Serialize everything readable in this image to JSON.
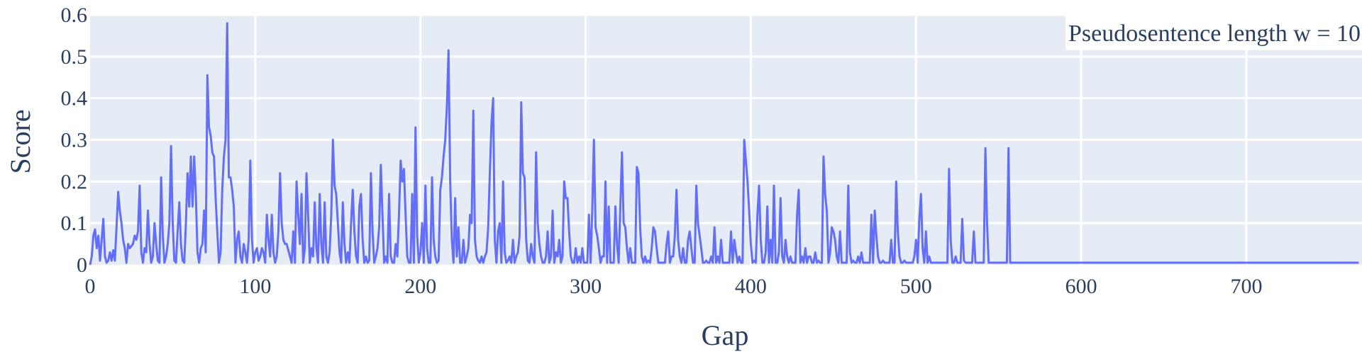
{
  "chart_data": {
    "type": "line",
    "xlabel": "Gap",
    "ylabel": "Score",
    "annotation": "Pseudosentence length w = 10",
    "xlim": [
      0,
      770
    ],
    "ylim": [
      0,
      0.6
    ],
    "x_ticks": [
      0,
      100,
      200,
      300,
      400,
      500,
      600,
      700
    ],
    "y_ticks": [
      0,
      0.1,
      0.2,
      0.3,
      0.4,
      0.5,
      0.6
    ],
    "x_tick_labels": [
      "0",
      "100",
      "200",
      "300",
      "400",
      "500",
      "600",
      "700"
    ],
    "y_tick_labels": [
      "0",
      "0.1",
      "0.2",
      "0.3",
      "0.4",
      "0.5",
      "0.6"
    ],
    "grid": true,
    "colors": {
      "line": "#636efa",
      "plot_bg": "#e5ecf6",
      "grid": "#ffffff",
      "text": "#2a3f5f"
    },
    "series": [
      {
        "values": [
          0,
          0.02,
          0.07,
          0.085,
          0.04,
          0.07,
          0.01,
          0.06,
          0.11,
          0.02,
          0.005,
          0.01,
          0.03,
          0.01,
          0.035,
          0.01,
          0.09,
          0.175,
          0.13,
          0.1,
          0.06,
          0.04,
          0.005,
          0.05,
          0.04,
          0.045,
          0.05,
          0.07,
          0.06,
          0.08,
          0.19,
          0.03,
          0.005,
          0.04,
          0.03,
          0.13,
          0.05,
          0.005,
          0.02,
          0.1,
          0.05,
          0.01,
          0.005,
          0.21,
          0.07,
          0.005,
          0.02,
          0.05,
          0.1,
          0.285,
          0.1,
          0.01,
          0.005,
          0.08,
          0.15,
          0.05,
          0.01,
          0.005,
          0.1,
          0.22,
          0.14,
          0.26,
          0.14,
          0.26,
          0.17,
          0.03,
          0.005,
          0.04,
          0.05,
          0.13,
          0.03,
          0.455,
          0.33,
          0.31,
          0.27,
          0.26,
          0.16,
          0.08,
          0.005,
          0.03,
          0.18,
          0.26,
          0.3,
          0.58,
          0.21,
          0.21,
          0.18,
          0.14,
          0.005,
          0.06,
          0.08,
          0.02,
          0.005,
          0.05,
          0.03,
          0.005,
          0.06,
          0.25,
          0.06,
          0.005,
          0.03,
          0.04,
          0.01,
          0.02,
          0.04,
          0.03,
          0.005,
          0.12,
          0.06,
          0.02,
          0.12,
          0.03,
          0.005,
          0.02,
          0.08,
          0.22,
          0.1,
          0.06,
          0.05,
          0.05,
          0.035,
          0.02,
          0.005,
          0.08,
          0.005,
          0.2,
          0.12,
          0.05,
          0.17,
          0.005,
          0.04,
          0.22,
          0.12,
          0.005,
          0.04,
          0.02,
          0.15,
          0.04,
          0.005,
          0.17,
          0.05,
          0.005,
          0.15,
          0.02,
          0.005,
          0.03,
          0.12,
          0.3,
          0.19,
          0.17,
          0.1,
          0.03,
          0.005,
          0.15,
          0.05,
          0.005,
          0.03,
          0.005,
          0.1,
          0.18,
          0.08,
          0.02,
          0.005,
          0.14,
          0.17,
          0.06,
          0.005,
          0.02,
          0.005,
          0.01,
          0.22,
          0.08,
          0.005,
          0.02,
          0.04,
          0.09,
          0.24,
          0.12,
          0.005,
          0.02,
          0.005,
          0.17,
          0.02,
          0.005,
          0.005,
          0.05,
          0.02,
          0.12,
          0.25,
          0.2,
          0.23,
          0.12,
          0.02,
          0.005,
          0.005,
          0.17,
          0.005,
          0.33,
          0.07,
          0.005,
          0.03,
          0.1,
          0.005,
          0.19,
          0.04,
          0.005,
          0.005,
          0.21,
          0.06,
          0.02,
          0.005,
          0.01,
          0.18,
          0.21,
          0.26,
          0.3,
          0.38,
          0.515,
          0.2,
          0.06,
          0.005,
          0.16,
          0.02,
          0.09,
          0.005,
          0.005,
          0.06,
          0.005,
          0.02,
          0.04,
          0.12,
          0.1,
          0.37,
          0.06,
          0.02,
          0.01,
          0.005,
          0.02,
          0.005,
          0.02,
          0.03,
          0.09,
          0.22,
          0.34,
          0.4,
          0.06,
          0.005,
          0.08,
          0.1,
          0.005,
          0.2,
          0.03,
          0.005,
          0.01,
          0.02,
          0.005,
          0.06,
          0.005,
          0.02,
          0.03,
          0.07,
          0.39,
          0.22,
          0.21,
          0.06,
          0.01,
          0.005,
          0.05,
          0.02,
          0.005,
          0.27,
          0.1,
          0.05,
          0.02,
          0.005,
          0.005,
          0.02,
          0.08,
          0.005,
          0.02,
          0.13,
          0.005,
          0.03,
          0.02,
          0.06,
          0.005,
          0.02,
          0.2,
          0.16,
          0.16,
          0.08,
          0.02,
          0.005,
          0.005,
          0.04,
          0.005,
          0.02,
          0.005,
          0.04,
          0.005,
          0.005,
          0.005,
          0.12,
          0.005,
          0.13,
          0.3,
          0.09,
          0.07,
          0.04,
          0.005,
          0.02,
          0.02,
          0.2,
          0.005,
          0.14,
          0.005,
          0.005,
          0.005,
          0.14,
          0.05,
          0.005,
          0.14,
          0.27,
          0.1,
          0.09,
          0.04,
          0.005,
          0.04,
          0.005,
          0.005,
          0.005,
          0.235,
          0.22,
          0.09,
          0.02,
          0.005,
          0.02,
          0.005,
          0.01,
          0.005,
          0.04,
          0.09,
          0.08,
          0.04,
          0.005,
          0.005,
          0.005,
          0.005,
          0.005,
          0.05,
          0.08,
          0.005,
          0.02,
          0.02,
          0.07,
          0.18,
          0.06,
          0.02,
          0.005,
          0.04,
          0.005,
          0.005,
          0.06,
          0.08,
          0.04,
          0.005,
          0.005,
          0.19,
          0.1,
          0.07,
          0.04,
          0.005,
          0.005,
          0.01,
          0.005,
          0.005,
          0.02,
          0.005,
          0.09,
          0.005,
          0.02,
          0.005,
          0.06,
          0.005,
          0.005,
          0.005,
          0.005,
          0.005,
          0.08,
          0.005,
          0.06,
          0.03,
          0.005,
          0.02,
          0.005,
          0.005,
          0.3,
          0.25,
          0.2,
          0.13,
          0.05,
          0.005,
          0.01,
          0.005,
          0.12,
          0.19,
          0.06,
          0.005,
          0.005,
          0.03,
          0.14,
          0.005,
          0.06,
          0.005,
          0.19,
          0.005,
          0.005,
          0.03,
          0.16,
          0.02,
          0.005,
          0.06,
          0.02,
          0.005,
          0.02,
          0.005,
          0.005,
          0.005,
          0.12,
          0.18,
          0.005,
          0.02,
          0.005,
          0.04,
          0.005,
          0.02,
          0.02,
          0.005,
          0.005,
          0.03,
          0.005,
          0.01,
          0.005,
          0.005,
          0.26,
          0.17,
          0.13,
          0.005,
          0.03,
          0.09,
          0.08,
          0.06,
          0.02,
          0.005,
          0.08,
          0.005,
          0.005,
          0.005,
          0.005,
          0.19,
          0.03,
          0.005,
          0.01,
          0.005,
          0.005,
          0.02,
          0.005,
          0.03,
          0.005,
          0.005,
          0.005,
          0.005,
          0.005,
          0.12,
          0.005,
          0.13,
          0.07,
          0.02,
          0.005,
          0.005,
          0.01,
          0.005,
          0.005,
          0.005,
          0.005,
          0.06,
          0.005,
          0.005,
          0.2,
          0.08,
          0.02,
          0.005,
          0.005,
          0.01,
          0.005,
          0.005,
          0.005,
          0.005,
          0.005,
          0.02,
          0.06,
          0.005,
          0.11,
          0.17,
          0.04,
          0.005,
          0.08,
          0.005,
          0.02,
          0.005,
          0.005,
          0.005,
          0.005,
          0.005,
          0.005,
          0.005,
          0.005,
          0.005,
          0.005,
          0.005,
          0.23,
          0.06,
          0.005,
          0.005,
          0.02,
          0.005,
          0.005,
          0.005,
          0.11,
          0.01,
          0.005,
          0.005,
          0.005,
          0.005,
          0.005,
          0.08,
          0.005,
          0.005,
          0.005,
          0.005,
          0.005,
          0.005,
          0.28,
          0.1,
          0.005,
          0.005,
          0.005,
          0.005,
          0.005,
          0.005,
          0.005,
          0.005,
          0.005,
          0.005,
          0.005,
          0.005,
          0.28,
          0.005,
          0.005,
          0.005,
          0.005,
          0.005,
          0.005,
          0.005,
          0.005,
          0.005,
          0.005,
          0.005,
          0.005,
          0.005,
          0.005,
          0.005,
          0.005,
          0.005,
          0.005,
          0.005,
          0.005,
          0.005,
          0.005,
          0.005,
          0.005,
          0.005,
          0.005,
          0.005,
          0.005,
          0.005,
          0.005,
          0.005,
          0.005,
          0.005,
          0.005,
          0.005,
          0.005,
          0.005,
          0.005,
          0.005,
          0.005,
          0.005,
          0.005,
          0.005,
          0.005,
          0.005,
          0.005,
          0.005,
          0.005,
          0.005,
          0.005,
          0.005,
          0.005,
          0.005,
          0.005,
          0.005,
          0.005,
          0.005,
          0.005,
          0.005,
          0.005,
          0.005,
          0.005,
          0.005,
          0.005,
          0.005,
          0.005,
          0.005,
          0.005,
          0.005,
          0.005,
          0.005,
          0.005,
          0.005,
          0.005,
          0.005,
          0.005,
          0.005,
          0.005,
          0.005,
          0.005,
          0.005,
          0.005,
          0.005,
          0.005,
          0.005,
          0.005,
          0.005,
          0.005,
          0.005,
          0.005,
          0.005,
          0.005,
          0.005,
          0.005,
          0.005,
          0.005,
          0.005,
          0.005,
          0.005,
          0.005,
          0.005,
          0.005,
          0.005,
          0.005,
          0.005,
          0.005,
          0.005,
          0.005,
          0.005,
          0.005,
          0.005,
          0.005,
          0.005,
          0.005,
          0.005,
          0.005,
          0.005,
          0.005,
          0.005,
          0.005,
          0.005,
          0.005,
          0.005,
          0.005,
          0.005,
          0.005,
          0.005,
          0.005,
          0.005,
          0.005,
          0.005,
          0.005,
          0.005,
          0.005,
          0.005,
          0.005,
          0.005,
          0.005,
          0.005,
          0.005,
          0.005,
          0.005,
          0.005,
          0.005,
          0.005,
          0.005,
          0.005,
          0.005,
          0.005,
          0.005,
          0.005,
          0.005,
          0.005,
          0.005,
          0.005,
          0.005,
          0.005,
          0.005,
          0.005,
          0.005,
          0.005,
          0.005,
          0.005,
          0.005,
          0.005,
          0.005,
          0.005,
          0.005,
          0.005,
          0.005,
          0.005,
          0.005,
          0.005,
          0.005,
          0.005,
          0.005,
          0.005,
          0.005,
          0.005,
          0.005,
          0.005,
          0.005,
          0.005,
          0.005,
          0.005,
          0.005,
          0.005,
          0.005,
          0.005,
          0.005,
          0.005,
          0.005,
          0.005,
          0.005,
          0.005,
          0.005,
          0.005,
          0.005,
          0.005,
          0.005,
          0.005,
          0.005,
          0.005,
          0.005,
          0.005,
          0.005,
          0.005,
          0.005,
          0.005,
          0.005,
          0.005,
          0.005
        ]
      }
    ]
  }
}
